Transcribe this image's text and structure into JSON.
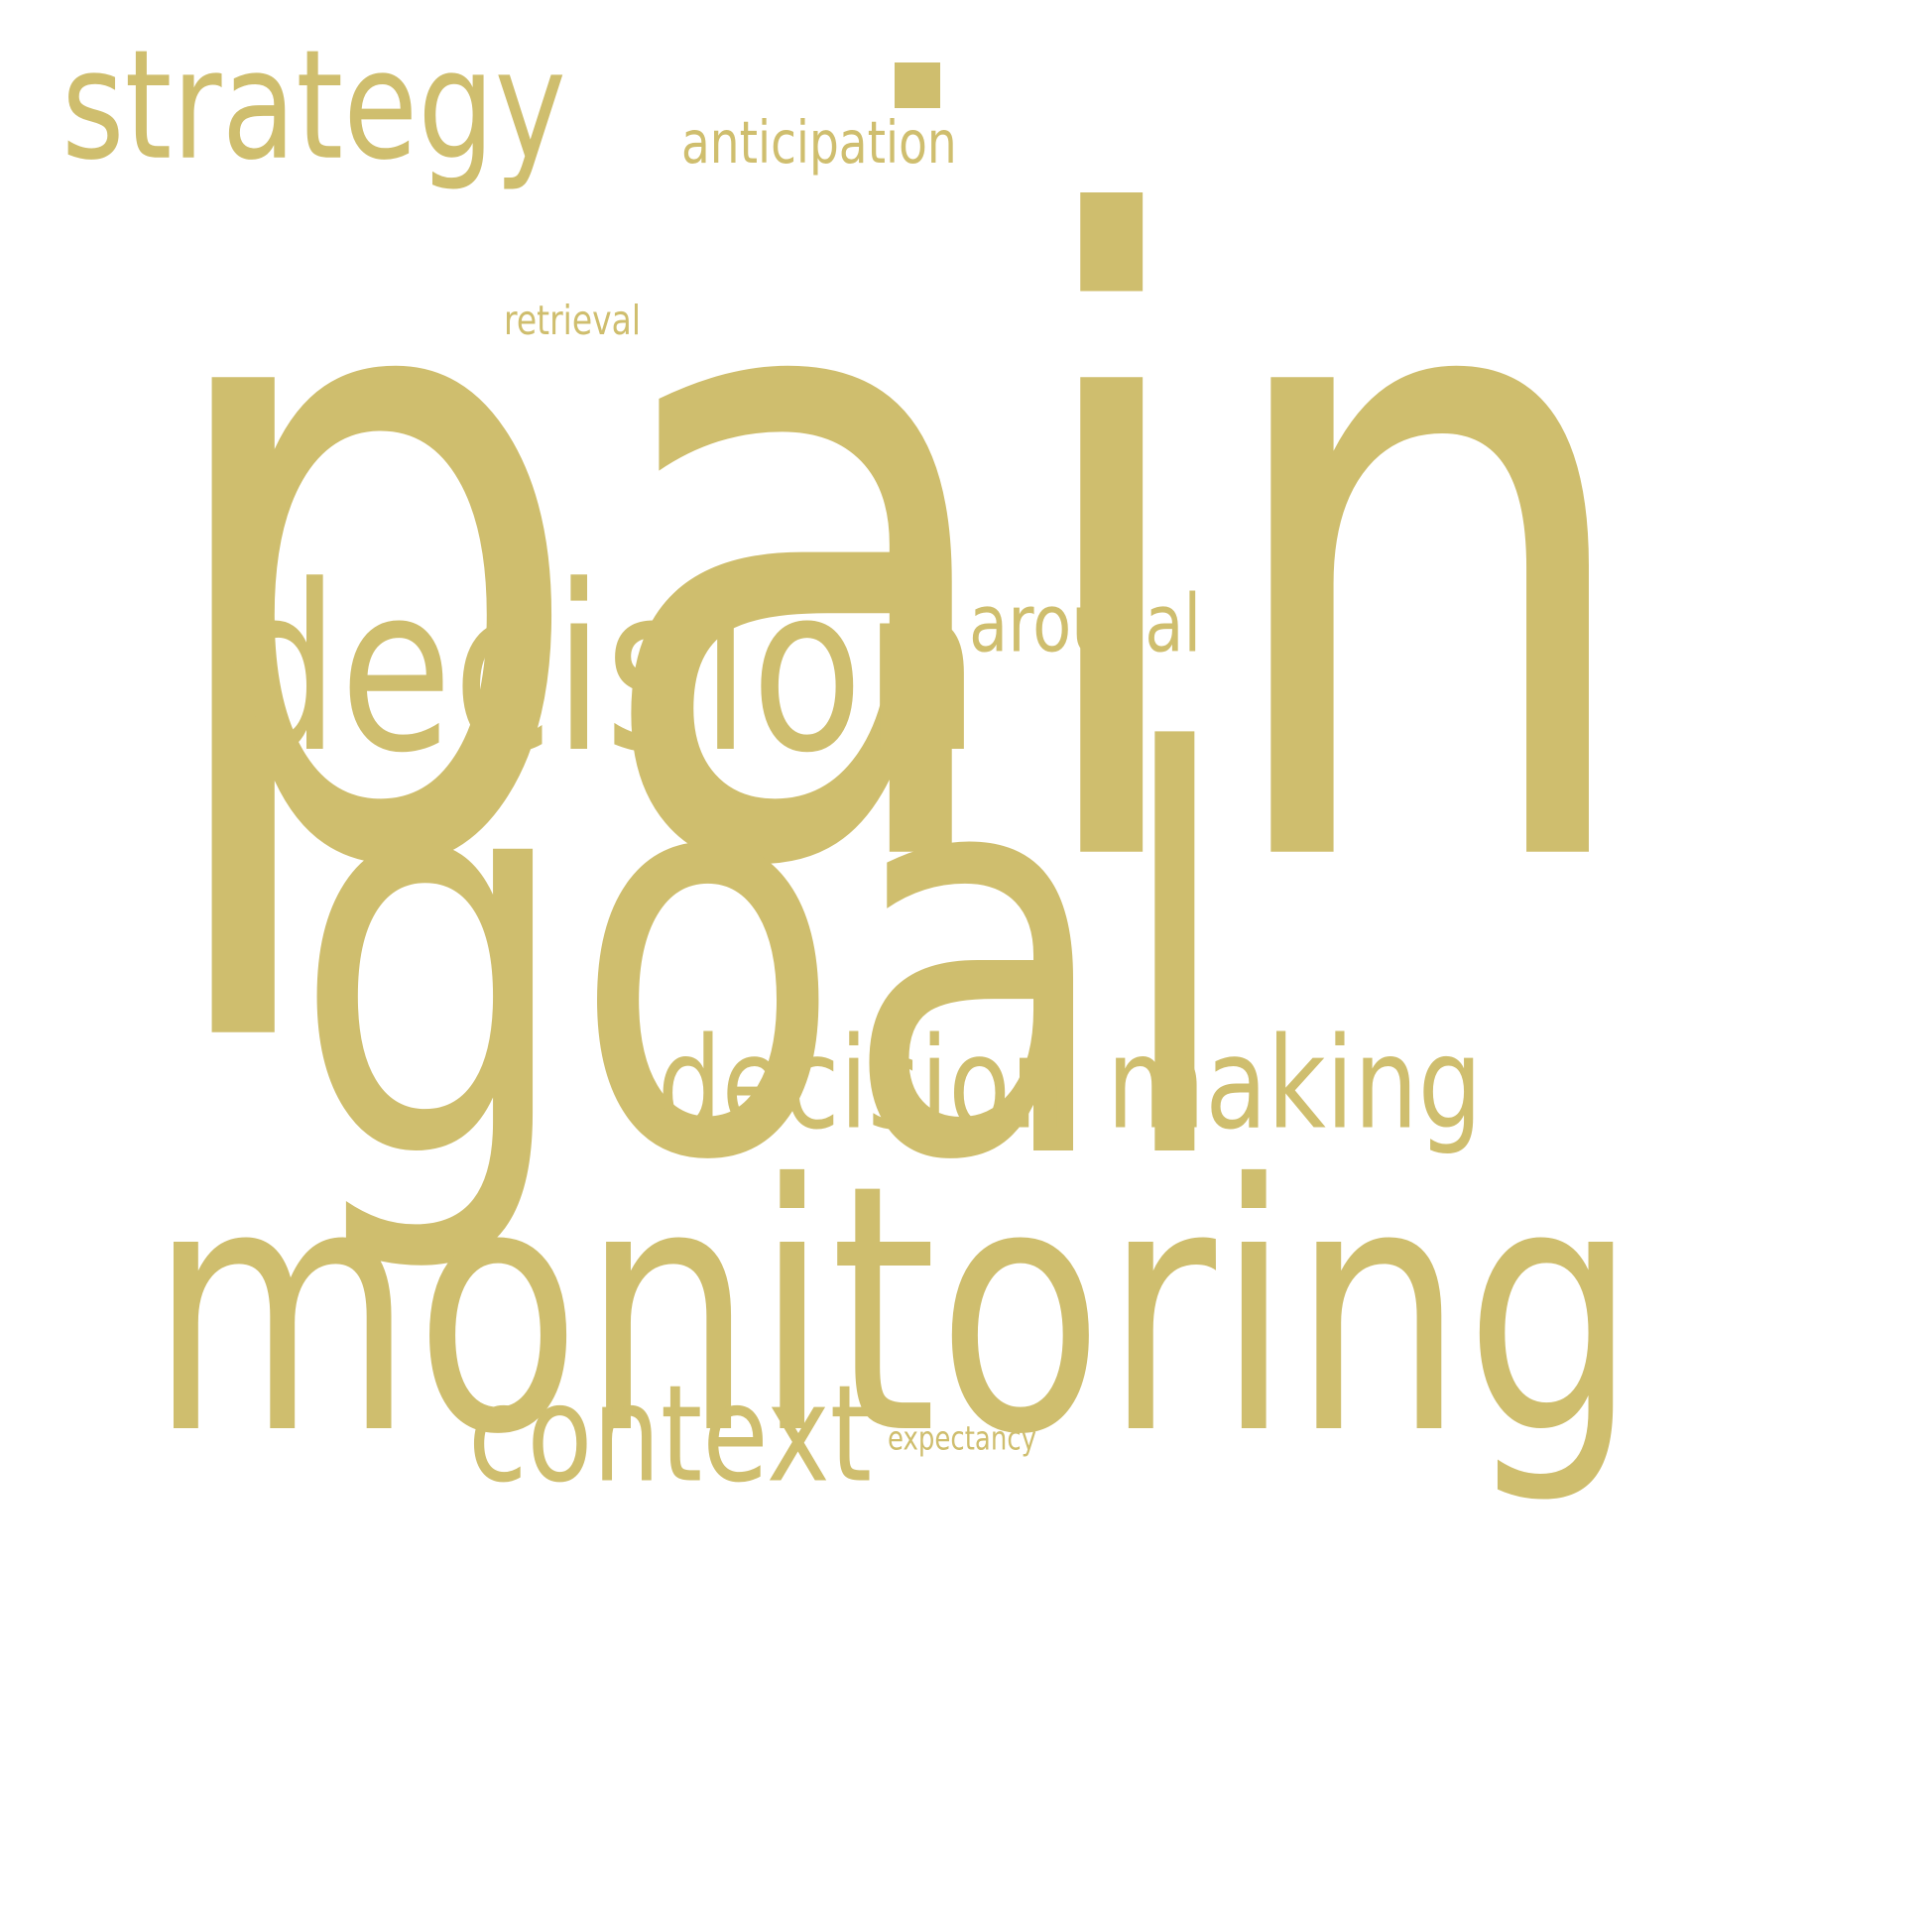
{
  "cloud": {
    "color": "#cfbe6e",
    "background": "#ffffff",
    "words": {
      "pain": "pain",
      "goal": "goal",
      "monitoring": "monitoring",
      "decision": "decision",
      "decision_making": "decision making",
      "strategy": "strategy",
      "context": "context",
      "arousal": "arousal",
      "anticipation": "anticipation",
      "retrieval": "retrieval",
      "expectancy": "expectancy"
    }
  }
}
